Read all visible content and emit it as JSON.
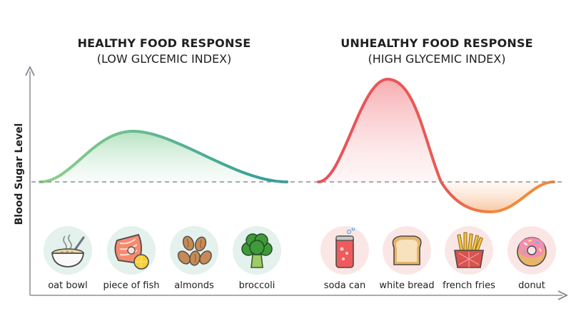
{
  "titles": {
    "healthy": {
      "main": "HEALTHY FOOD RESPONSE",
      "sub": "(LOW GLYCEMIC INDEX)"
    },
    "unhealthy": {
      "main": "UNHEALTHY FOOD RESPONSE",
      "sub": "(HIGH GLYCEMIC INDEX)"
    }
  },
  "axis": {
    "y_label": "Blood Sugar Level"
  },
  "colors": {
    "healthy_start": "#7fc98a",
    "healthy_end": "#2f9a9a",
    "unhealthy_line": "#e9505a",
    "dip_line": "#f08a3c",
    "baseline": "#8a8f96",
    "healthy_circle": "#e4f1ec",
    "unhealthy_circle": "#fbe6e6"
  },
  "healthy_foods": [
    {
      "label": "oat bowl",
      "icon": "oat-bowl-icon"
    },
    {
      "label": "piece of fish",
      "icon": "fish-icon"
    },
    {
      "label": "almonds",
      "icon": "almonds-icon"
    },
    {
      "label": "broccoli",
      "icon": "broccoli-icon"
    }
  ],
  "unhealthy_foods": [
    {
      "label": "soda can",
      "icon": "soda-can-icon"
    },
    {
      "label": "white bread",
      "icon": "bread-icon"
    },
    {
      "label": "french fries",
      "icon": "fries-icon"
    },
    {
      "label": "donut",
      "icon": "donut-icon"
    }
  ]
}
